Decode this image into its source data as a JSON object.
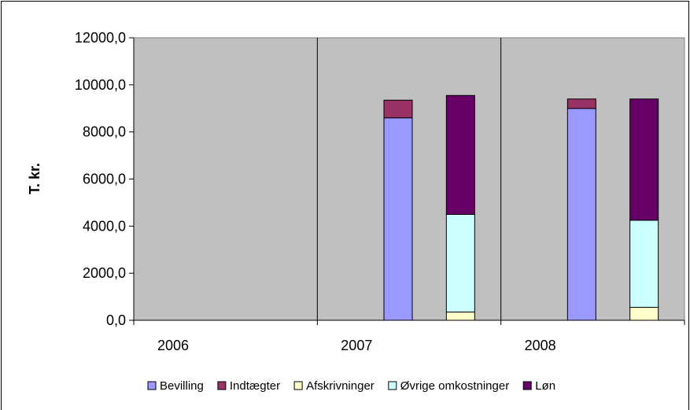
{
  "chart_data": {
    "type": "bar",
    "stacked": true,
    "ylabel": "T. kr.",
    "ylim": [
      0,
      12000
    ],
    "yticks": [
      "0,0",
      "2000,0",
      "4000,0",
      "6000,0",
      "8000,0",
      "10000,0",
      "12000,0"
    ],
    "categories": [
      "2006",
      "2007",
      "2008"
    ],
    "grid": "vertical separators only",
    "legend_position": "bottom",
    "stacks": [
      {
        "category": "2007",
        "slot": "left",
        "segments": [
          {
            "series": "Bevilling",
            "value": 8600
          },
          {
            "series": "Indtægter",
            "value": 750
          }
        ]
      },
      {
        "category": "2007",
        "slot": "right",
        "segments": [
          {
            "series": "Afskrivninger",
            "value": 350
          },
          {
            "series": "Øvrige omkostninger",
            "value": 4150
          },
          {
            "series": "Løn",
            "value": 5050
          }
        ]
      },
      {
        "category": "2008",
        "slot": "left",
        "segments": [
          {
            "series": "Bevilling",
            "value": 9000
          },
          {
            "series": "Indtægter",
            "value": 400
          }
        ]
      },
      {
        "category": "2008",
        "slot": "right",
        "segments": [
          {
            "series": "Afskrivninger",
            "value": 550
          },
          {
            "series": "Øvrige omkostninger",
            "value": 3700
          },
          {
            "series": "Løn",
            "value": 5150
          }
        ]
      }
    ],
    "series": [
      {
        "name": "Bevilling",
        "color": "#9999FF"
      },
      {
        "name": "Indtægter",
        "color": "#993366"
      },
      {
        "name": "Afskrivninger",
        "color": "#FFFFCC"
      },
      {
        "name": "Øvrige omkostninger",
        "color": "#CCFFFF"
      },
      {
        "name": "Løn",
        "color": "#660066"
      }
    ],
    "colors": {
      "plot_background": "#C0C0C0",
      "frame": "#000000"
    }
  }
}
